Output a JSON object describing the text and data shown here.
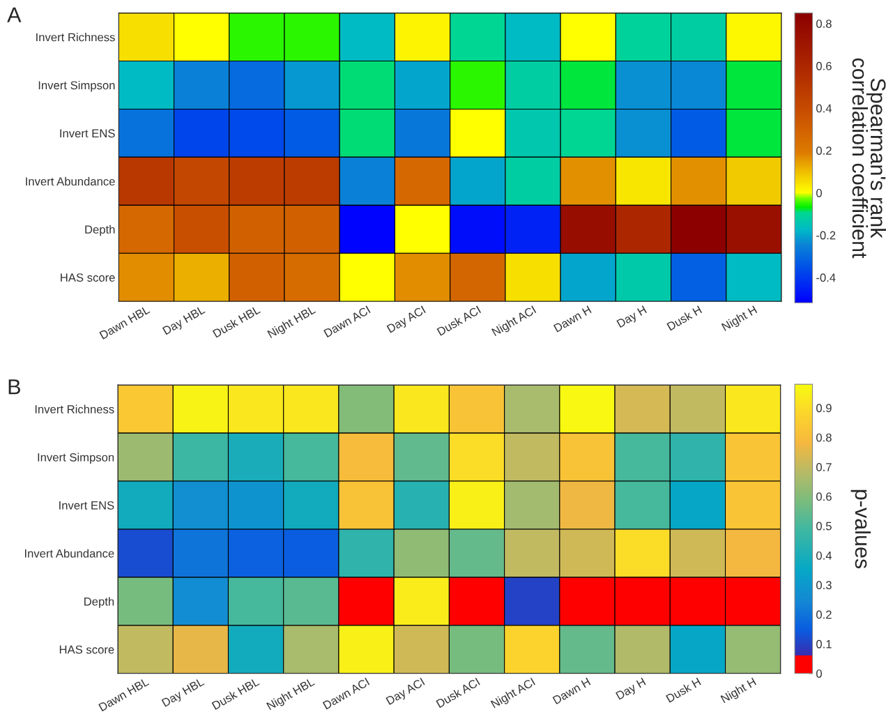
{
  "chart_data": [
    {
      "type": "heatmap",
      "title": "A",
      "clabel": "Spearman's rank\ncorrelation coefficient",
      "categories": [
        "Dawn HBL",
        "Day HBL",
        "Dusk HBL",
        "Night HBL",
        "Dawn ACI",
        "Day ACI",
        "Dusk ACI",
        "Night ACI",
        "Dawn H",
        "Day H",
        "Dusk H",
        "Night H"
      ],
      "y_categories": [
        "Invert Richness",
        "Invert Simpson",
        "Invert ENS",
        "Invert Abundance",
        "Depth",
        "HAS score"
      ],
      "cells": [
        [
          0.05,
          0.0,
          -0.05,
          -0.05,
          -0.17,
          0.02,
          -0.1,
          -0.17,
          0.0,
          -0.11,
          -0.12,
          0.01
        ],
        [
          -0.17,
          -0.25,
          -0.3,
          -0.22,
          -0.09,
          -0.2,
          -0.05,
          -0.12,
          -0.08,
          -0.23,
          -0.24,
          -0.08
        ],
        [
          -0.28,
          -0.38,
          -0.37,
          -0.33,
          -0.09,
          -0.27,
          0.0,
          -0.14,
          -0.1,
          -0.23,
          -0.33,
          -0.08
        ],
        [
          0.5,
          0.42,
          0.48,
          0.48,
          -0.25,
          0.27,
          -0.2,
          -0.12,
          0.16,
          0.04,
          0.16,
          0.08
        ],
        [
          0.27,
          0.38,
          0.3,
          0.3,
          -0.51,
          0.0,
          -0.49,
          -0.45,
          0.76,
          0.6,
          0.84,
          0.74
        ],
        [
          0.17,
          0.12,
          0.3,
          0.26,
          0.0,
          0.17,
          0.28,
          0.05,
          -0.2,
          -0.13,
          -0.32,
          -0.17
        ]
      ],
      "clim": [
        -0.52,
        0.85
      ],
      "cticks": [
        -0.4,
        -0.2,
        0,
        0.2,
        0.4,
        0.6,
        0.8
      ]
    },
    {
      "type": "heatmap",
      "title": "B",
      "clabel": "p-values",
      "categories": [
        "Dawn HBL",
        "Day HBL",
        "Dusk HBL",
        "Night HBL",
        "Dawn ACI",
        "Day ACI",
        "Dusk ACI",
        "Night ACI",
        "Dawn H",
        "Day H",
        "Dusk H",
        "Night H"
      ],
      "y_categories": [
        "Invert Richness",
        "Invert Simpson",
        "Invert ENS",
        "Invert Abundance",
        "Depth",
        "HAS score"
      ],
      "cells": [
        [
          0.84,
          0.96,
          0.93,
          0.93,
          0.6,
          0.93,
          0.82,
          0.66,
          0.97,
          0.73,
          0.7,
          0.93
        ],
        [
          0.64,
          0.48,
          0.4,
          0.5,
          0.8,
          0.54,
          0.9,
          0.7,
          0.82,
          0.5,
          0.45,
          0.83
        ],
        [
          0.38,
          0.27,
          0.28,
          0.38,
          0.82,
          0.43,
          0.95,
          0.65,
          0.77,
          0.5,
          0.35,
          0.83
        ],
        [
          0.12,
          0.2,
          0.16,
          0.15,
          0.45,
          0.62,
          0.55,
          0.7,
          0.72,
          0.9,
          0.72,
          0.78
        ],
        [
          0.58,
          0.26,
          0.5,
          0.53,
          0.01,
          0.94,
          0.01,
          0.1,
          0.01,
          0.01,
          0.01,
          0.01
        ],
        [
          0.7,
          0.76,
          0.38,
          0.66,
          0.95,
          0.72,
          0.58,
          0.88,
          0.55,
          0.67,
          0.35,
          0.63
        ]
      ],
      "clim": [
        0,
        0.98
      ],
      "cticks": [
        0,
        0.1,
        0.2,
        0.3,
        0.4,
        0.5,
        0.6,
        0.7,
        0.8,
        0.9
      ]
    }
  ]
}
